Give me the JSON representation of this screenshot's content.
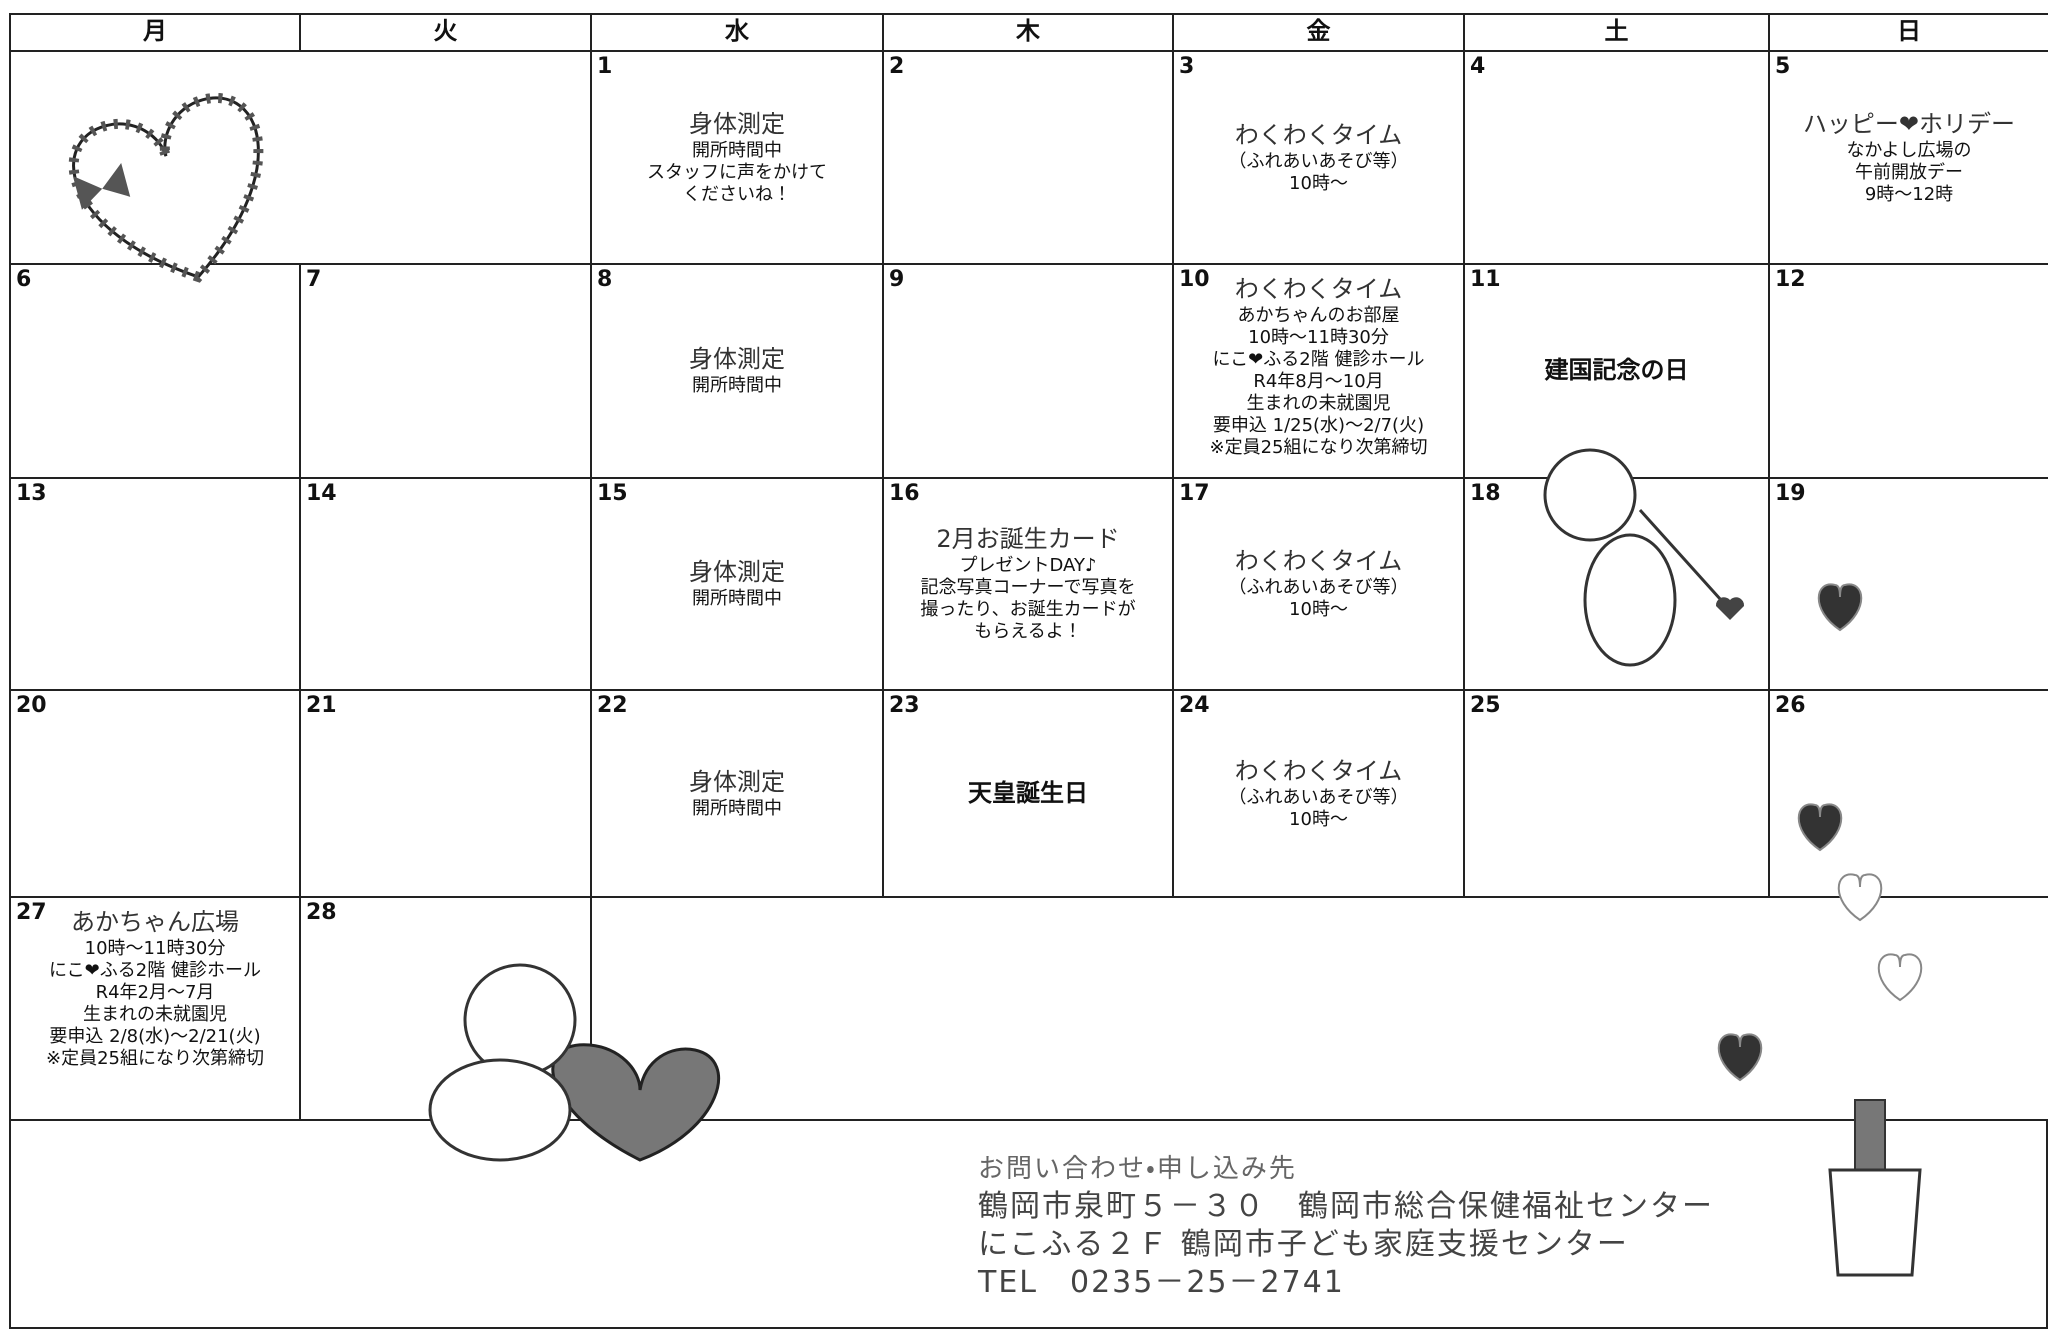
{
  "weekdays": [
    "月",
    "火",
    "水",
    "木",
    "金",
    "土",
    "日"
  ],
  "days": [
    {
      "day": 1,
      "lines": [
        "身体測定",
        "開所時間中",
        "スタッフに声をかけて",
        "くださいね！"
      ]
    },
    {
      "day": 2,
      "lines": []
    },
    {
      "day": 3,
      "lines": [
        "わくわくタイム",
        "（ふれあいあそび等）",
        "10時～"
      ]
    },
    {
      "day": 4,
      "lines": []
    },
    {
      "day": 5,
      "lines": [
        "ハッピー❤ホリデー",
        "なかよし広場の",
        "午前開放デー",
        "9時～12時"
      ]
    },
    {
      "day": 6,
      "lines": []
    },
    {
      "day": 7,
      "lines": []
    },
    {
      "day": 8,
      "lines": [
        "身体測定",
        "開所時間中"
      ]
    },
    {
      "day": 9,
      "lines": []
    },
    {
      "day": 10,
      "lines": [
        "わくわくタイム",
        "あかちゃんのお部屋",
        "10時～11時30分",
        "にこ❤ふる2階 健診ホール",
        "R4年8月～10月",
        "生まれの未就園児",
        "要申込 1/25(水)～2/7(火)",
        "※定員25組になり次第締切"
      ]
    },
    {
      "day": 11,
      "lines": [
        "建国記念の日"
      ]
    },
    {
      "day": 12,
      "lines": []
    },
    {
      "day": 13,
      "lines": []
    },
    {
      "day": 14,
      "lines": []
    },
    {
      "day": 15,
      "lines": [
        "身体測定",
        "開所時間中"
      ]
    },
    {
      "day": 16,
      "lines": [
        "2月お誕生カード",
        "プレゼントDAY♪",
        "記念写真コーナーで写真を",
        "撮ったり、お誕生カードが",
        "もらえるよ！"
      ]
    },
    {
      "day": 17,
      "lines": [
        "わくわくタイム",
        "（ふれあいあそび等）",
        "10時～"
      ]
    },
    {
      "day": 18,
      "lines": []
    },
    {
      "day": 19,
      "lines": []
    },
    {
      "day": 20,
      "lines": []
    },
    {
      "day": 21,
      "lines": []
    },
    {
      "day": 22,
      "lines": [
        "身体測定",
        "開所時間中"
      ]
    },
    {
      "day": 23,
      "lines": [
        "天皇誕生日"
      ]
    },
    {
      "day": 24,
      "lines": [
        "わくわくタイム",
        "（ふれあいあそび等）",
        "10時～"
      ]
    },
    {
      "day": 25,
      "lines": []
    },
    {
      "day": 26,
      "lines": []
    },
    {
      "day": 27,
      "lines": [
        "あかちゃん広場",
        "10時～11時30分",
        "にこ❤ふる2階 健診ホール",
        "R4年2月～7月",
        "生まれの未就園児",
        "要申込 2/8(水)～2/21(火)",
        "※定員25組になり次第締切"
      ]
    },
    {
      "day": 28,
      "lines": []
    }
  ],
  "footer": [
    "お問い合わせ・申し込み先",
    "鶴岡市泉町５－３０　鶴岡市総合保健福祉センター",
    "にこふる２Ｆ 鶴岡市子ども家庭支援センター",
    "TEL　0235－25－2741"
  ]
}
